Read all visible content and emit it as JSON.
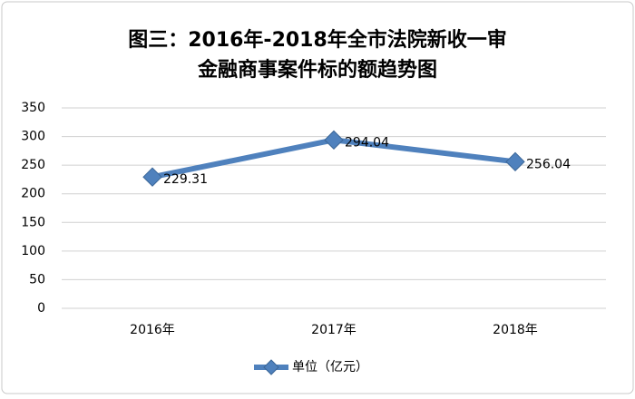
{
  "chart_data": {
    "type": "line",
    "title": [
      "图三：2016年-2018年全市法院新收一审",
      "金融商事案件标的额趋势图"
    ],
    "categories": [
      "2016年",
      "2017年",
      "2018年"
    ],
    "series": [
      {
        "name": "单位（亿元）",
        "color": "#4f81bd",
        "values": [
          229.31,
          294.04,
          256.04
        ]
      }
    ],
    "ylim": [
      0,
      350
    ],
    "yticks": [
      0,
      50,
      100,
      150,
      200,
      250,
      300,
      350
    ],
    "grid": true,
    "legend": "bottom",
    "data_labels": true
  }
}
